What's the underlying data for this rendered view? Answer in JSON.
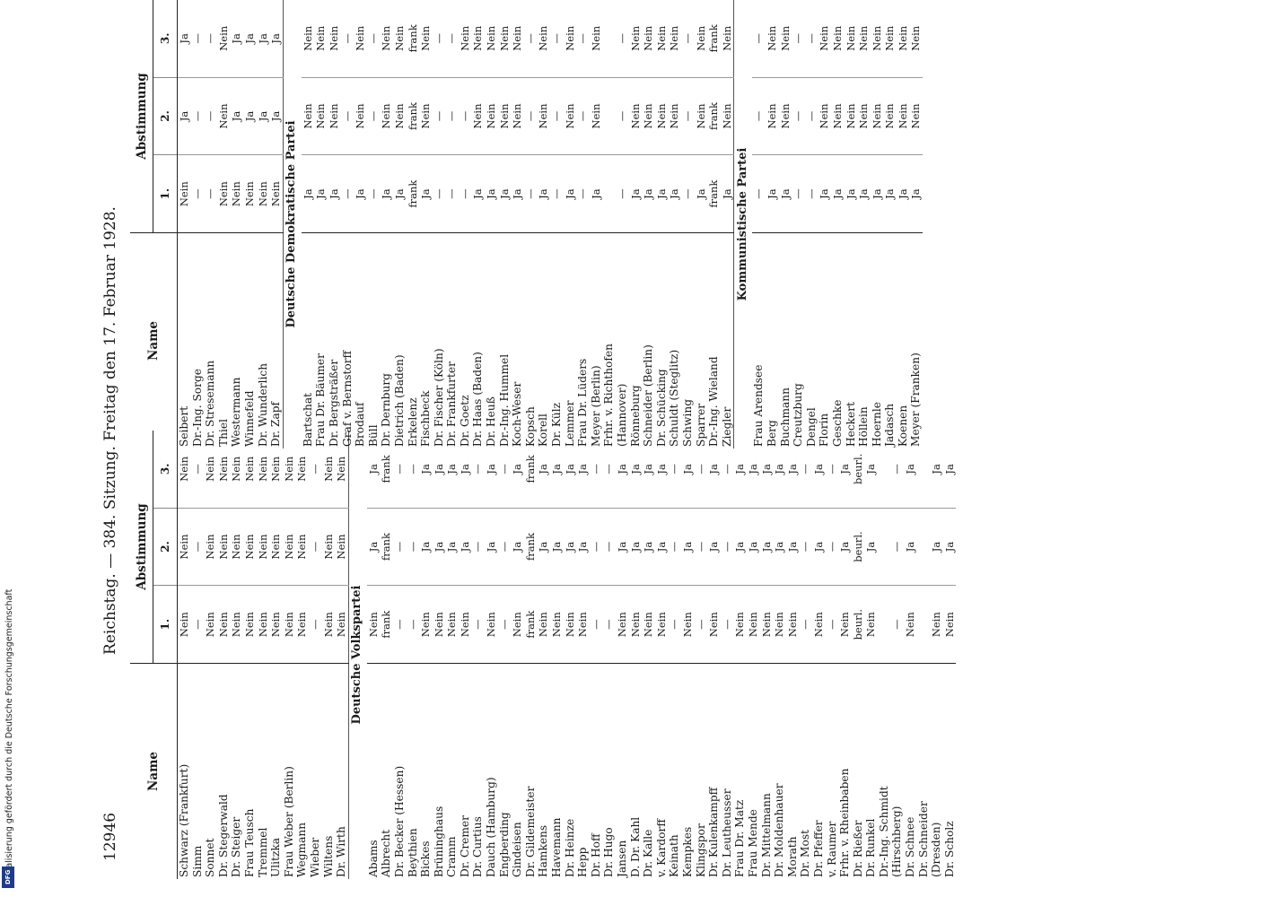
{
  "header": {
    "page_number": "12946",
    "running_title": "Reichstag. — 384. Sitzung. Freitag den 17. Februar 1928."
  },
  "table_headers": {
    "name": "Name",
    "vote_group": "Abstimmung",
    "vote_1": "1.",
    "vote_2": "2.",
    "vote_3": "3."
  },
  "left_column": {
    "rows_top": [
      {
        "name": "Schwarz (Frankfurt)",
        "v1": "Nein",
        "v2": "Nein",
        "v3": "Nein"
      },
      {
        "name": "Simm",
        "v1": "—",
        "v2": "—",
        "v3": "—"
      },
      {
        "name": "Sonnet",
        "v1": "Nein",
        "v2": "Nein",
        "v3": "Nein"
      },
      {
        "name": "Dr. Stegerwald",
        "v1": "Nein",
        "v2": "Nein",
        "v3": "Nein"
      },
      {
        "name": "Dr. Steiger",
        "v1": "Nein",
        "v2": "Nein",
        "v3": "Nein"
      },
      {
        "name": "Frau Teusch",
        "v1": "Nein",
        "v2": "Nein",
        "v3": "Nein"
      },
      {
        "name": "Tremmel",
        "v1": "Nein",
        "v2": "Nein",
        "v3": "Nein"
      },
      {
        "name": "Ulitzka",
        "v1": "Nein",
        "v2": "Nein",
        "v3": "Nein"
      },
      {
        "name": "Frau Weber (Berlin)",
        "v1": "Nein",
        "v2": "Nein",
        "v3": "Nein"
      },
      {
        "name": "Wegmann",
        "v1": "Nein",
        "v2": "Nein",
        "v3": "Nein"
      },
      {
        "name": "Wieber",
        "v1": "—",
        "v2": "—",
        "v3": "—"
      },
      {
        "name": "Wiltens",
        "v1": "Nein",
        "v2": "Nein",
        "v3": "Nein"
      },
      {
        "name": "Dr. Wirth",
        "v1": "Nein",
        "v2": "Nein",
        "v3": "Nein"
      }
    ],
    "party": "Deutsche Volkspartei",
    "rows_party": [
      {
        "name": "Abams",
        "v1": "Nein",
        "v2": "Ja",
        "v3": "Ja"
      },
      {
        "name": "Albrecht",
        "v1": "frank",
        "v2": "frank",
        "v3": "frank"
      },
      {
        "name": "Dr. Becker (Hessen)",
        "v1": "—",
        "v2": "—",
        "v3": "—"
      },
      {
        "name": "Beythien",
        "v1": "—",
        "v2": "—",
        "v3": "—"
      },
      {
        "name": "Bickes",
        "v1": "Nein",
        "v2": "Ja",
        "v3": "Ja"
      },
      {
        "name": "Brüninghaus",
        "v1": "Nein",
        "v2": "Ja",
        "v3": "Ja"
      },
      {
        "name": "Cramm",
        "v1": "Nein",
        "v2": "Ja",
        "v3": "Ja"
      },
      {
        "name": "Dr. Cremer",
        "v1": "Nein",
        "v2": "Ja",
        "v3": "Ja"
      },
      {
        "name": "Dr. Curtius",
        "v1": "—",
        "v2": "—",
        "v3": "—"
      },
      {
        "name": "Dauch (Hamburg)",
        "v1": "Nein",
        "v2": "Ja",
        "v3": "Ja"
      },
      {
        "name": "Engberding",
        "v1": "—",
        "v2": "—",
        "v3": "—"
      },
      {
        "name": "Gindeisen",
        "v1": "Nein",
        "v2": "Ja",
        "v3": "Ja"
      },
      {
        "name": "Dr. Gildemeister",
        "v1": "frank",
        "v2": "frank",
        "v3": "frank"
      },
      {
        "name": "Hamkens",
        "v1": "Nein",
        "v2": "Ja",
        "v3": "Ja"
      },
      {
        "name": "Havemann",
        "v1": "Nein",
        "v2": "Ja",
        "v3": "Ja"
      },
      {
        "name": "Dr. Heinze",
        "v1": "Nein",
        "v2": "Ja",
        "v3": "Ja"
      },
      {
        "name": "Hepp",
        "v1": "Nein",
        "v2": "Ja",
        "v3": "Ja"
      },
      {
        "name": "Dr. Hoff",
        "v1": "—",
        "v2": "—",
        "v3": "—"
      },
      {
        "name": "Dr. Hugo",
        "v1": "—",
        "v2": "—",
        "v3": "—"
      },
      {
        "name": "Jansen",
        "v1": "Nein",
        "v2": "Ja",
        "v3": "Ja"
      },
      {
        "name": "D. Dr. Kahl",
        "v1": "Nein",
        "v2": "Ja",
        "v3": "Ja"
      },
      {
        "name": "Dr. Kalle",
        "v1": "Nein",
        "v2": "Ja",
        "v3": "Ja"
      },
      {
        "name": "v. Kardorff",
        "v1": "Nein",
        "v2": "Ja",
        "v3": "Ja"
      },
      {
        "name": "Keinath",
        "v1": "—",
        "v2": "—",
        "v3": "—"
      },
      {
        "name": "Kempkes",
        "v1": "Nein",
        "v2": "Ja",
        "v3": "Ja"
      },
      {
        "name": "Klingspor",
        "v1": "—",
        "v2": "—",
        "v3": "—"
      },
      {
        "name": "Dr. Kulenkampff",
        "v1": "Nein",
        "v2": "Ja",
        "v3": "Ja"
      },
      {
        "name": "Dr. Leutheusser",
        "v1": "—",
        "v2": "—",
        "v3": "—"
      },
      {
        "name": "Frau Dr. Matz",
        "v1": "Nein",
        "v2": "Ja",
        "v3": "Ja"
      },
      {
        "name": "Frau Mende",
        "v1": "Nein",
        "v2": "Ja",
        "v3": "Ja"
      },
      {
        "name": "Dr. Mittelmann",
        "v1": "Nein",
        "v2": "Ja",
        "v3": "Ja"
      },
      {
        "name": "Dr. Moldenhauer",
        "v1": "Nein",
        "v2": "Ja",
        "v3": "Ja"
      },
      {
        "name": "Morath",
        "v1": "Nein",
        "v2": "Ja",
        "v3": "Ja"
      },
      {
        "name": "Dr. Most",
        "v1": "—",
        "v2": "—",
        "v3": "—"
      },
      {
        "name": "Dr. Pfeffer",
        "v1": "Nein",
        "v2": "Ja",
        "v3": "Ja"
      },
      {
        "name": "v. Raumer",
        "v1": "—",
        "v2": "—",
        "v3": "—"
      },
      {
        "name": "Frhr. v. Rheinbaben",
        "v1": "Nein",
        "v2": "Ja",
        "v3": "Ja"
      },
      {
        "name": "Dr. Rießer",
        "v1": "beurl.",
        "v2": "beurl.",
        "v3": "beurl."
      },
      {
        "name": "Dr. Runkel",
        "v1": "Nein",
        "v2": "Ja",
        "v3": "Ja"
      },
      {
        "name": "Dr.-Ing. Schmidt",
        "v1": "",
        "v2": "",
        "v3": ""
      },
      {
        "name": "(Hirschberg)",
        "v1": "—",
        "v2": "—",
        "v3": "—"
      },
      {
        "name": "Dr. Schnee",
        "v1": "Nein",
        "v2": "Ja",
        "v3": "Ja"
      },
      {
        "name": "Dr. Schneider",
        "v1": "",
        "v2": "",
        "v3": ""
      },
      {
        "name": "(Dresden)",
        "v1": "Nein",
        "v2": "Ja",
        "v3": "Ja"
      },
      {
        "name": "Dr. Scholz",
        "v1": "Nein",
        "v2": "Ja",
        "v3": "Ja"
      }
    ]
  },
  "right_column": {
    "rows_top": [
      {
        "name": "Seibert",
        "v1": "Nein",
        "v2": "Ja",
        "v3": "Ja"
      },
      {
        "name": "Dr.-Ing. Sorge",
        "v1": "—",
        "v2": "—",
        "v3": "—"
      },
      {
        "name": "Dr. Stresemann",
        "v1": "—",
        "v2": "—",
        "v3": "—"
      },
      {
        "name": "Thiel",
        "v1": "Nein",
        "v2": "Nein",
        "v3": "Nein"
      },
      {
        "name": "Westermann",
        "v1": "Nein",
        "v2": "Ja",
        "v3": "Ja"
      },
      {
        "name": "Winnefeld",
        "v1": "Nein",
        "v2": "Ja",
        "v3": "Ja"
      },
      {
        "name": "Dr. Wunderlich",
        "v1": "Nein",
        "v2": "Ja",
        "v3": "Ja"
      },
      {
        "name": "Dr. Zapf",
        "v1": "Nein",
        "v2": "Ja",
        "v3": "Ja"
      }
    ],
    "party1": "Deutsche Demokratische Partei",
    "rows_party1": [
      {
        "name": "Bartschat",
        "v1": "Ja",
        "v2": "Nein",
        "v3": "Nein"
      },
      {
        "name": "Frau Dr. Bäumer",
        "v1": "Ja",
        "v2": "Nein",
        "v3": "Nein"
      },
      {
        "name": "Dr. Bergsträßer",
        "v1": "Ja",
        "v2": "Nein",
        "v3": "Nein"
      },
      {
        "name": "Graf v. Bernstorff",
        "v1": "—",
        "v2": "—",
        "v3": "—"
      },
      {
        "name": "Brodauf",
        "v1": "Ja",
        "v2": "Nein",
        "v3": "Nein"
      },
      {
        "name": "Büll",
        "v1": "—",
        "v2": "—",
        "v3": "—"
      },
      {
        "name": "Dr. Dernburg",
        "v1": "Ja",
        "v2": "Nein",
        "v3": "Nein"
      },
      {
        "name": "Dietrich (Baden)",
        "v1": "Ja",
        "v2": "Nein",
        "v3": "Nein"
      },
      {
        "name": "Erkelenz",
        "v1": "frank",
        "v2": "frank",
        "v3": "frank"
      },
      {
        "name": "Fischbeck",
        "v1": "Ja",
        "v2": "Nein",
        "v3": "Nein"
      },
      {
        "name": "Dr. Fischer (Köln)",
        "v1": "—",
        "v2": "—",
        "v3": "—"
      },
      {
        "name": "Dr. Frankfurter",
        "v1": "—",
        "v2": "—",
        "v3": "—"
      },
      {
        "name": "Dr. Goetz",
        "v1": "—",
        "v2": "—",
        "v3": "Nein"
      },
      {
        "name": "Dr. Haas (Baden)",
        "v1": "Ja",
        "v2": "Nein",
        "v3": "Nein"
      },
      {
        "name": "Dr. Heuß",
        "v1": "Ja",
        "v2": "Nein",
        "v3": "Nein"
      },
      {
        "name": "Dr.-Ing. Hummel",
        "v1": "Ja",
        "v2": "Nein",
        "v3": "Nein"
      },
      {
        "name": "Koch-Weser",
        "v1": "Ja",
        "v2": "Nein",
        "v3": "Nein"
      },
      {
        "name": "Kopsch",
        "v1": "—",
        "v2": "—",
        "v3": "—"
      },
      {
        "name": "Korell",
        "v1": "Ja",
        "v2": "Nein",
        "v3": "Nein"
      },
      {
        "name": "Dr. Külz",
        "v1": "—",
        "v2": "—",
        "v3": "—"
      },
      {
        "name": "Lemmer",
        "v1": "Ja",
        "v2": "Nein",
        "v3": "Nein"
      },
      {
        "name": "Frau Dr. Lüders",
        "v1": "—",
        "v2": "—",
        "v3": "—"
      },
      {
        "name": "Meyer (Berlin)",
        "v1": "Ja",
        "v2": "Nein",
        "v3": "Nein"
      },
      {
        "name": "Frhr. v. Richthofen",
        "v1": "",
        "v2": "",
        "v3": ""
      },
      {
        "name": "(Hannover)",
        "v1": "—",
        "v2": "—",
        "v3": "—"
      },
      {
        "name": "Rönneburg",
        "v1": "Ja",
        "v2": "Nein",
        "v3": "Nein"
      },
      {
        "name": "Schneider (Berlin)",
        "v1": "Ja",
        "v2": "Nein",
        "v3": "Nein"
      },
      {
        "name": "Dr. Schücking",
        "v1": "Ja",
        "v2": "Nein",
        "v3": "Nein"
      },
      {
        "name": "Schuldt (Steglitz)",
        "v1": "Ja",
        "v2": "Nein",
        "v3": "Nein"
      },
      {
        "name": "Schwing",
        "v1": "—",
        "v2": "—",
        "v3": "—"
      },
      {
        "name": "Sparrer",
        "v1": "Ja",
        "v2": "Nein",
        "v3": "Nein"
      },
      {
        "name": "Dr.-Ing. Wieland",
        "v1": "frank",
        "v2": "frank",
        "v3": "frank"
      },
      {
        "name": "Ziegler",
        "v1": "Ja",
        "v2": "Nein",
        "v3": "Nein"
      }
    ],
    "party2": "Kommunistische Partei",
    "rows_party2": [
      {
        "name": "Frau Arendsee",
        "v1": "—",
        "v2": "—",
        "v3": "—"
      },
      {
        "name": "Berg",
        "v1": "Ja",
        "v2": "Nein",
        "v3": "Nein"
      },
      {
        "name": "Buchmann",
        "v1": "Ja",
        "v2": "Nein",
        "v3": "Nein"
      },
      {
        "name": "Creutzburg",
        "v1": "—",
        "v2": "—",
        "v3": "—"
      },
      {
        "name": "Dengel",
        "v1": "—",
        "v2": "—",
        "v3": "—"
      },
      {
        "name": "Florin",
        "v1": "Ja",
        "v2": "Nein",
        "v3": "Nein"
      },
      {
        "name": "Geschke",
        "v1": "Ja",
        "v2": "Nein",
        "v3": "Nein"
      },
      {
        "name": "Heckert",
        "v1": "Ja",
        "v2": "Nein",
        "v3": "Nein"
      },
      {
        "name": "Höllein",
        "v1": "Ja",
        "v2": "Nein",
        "v3": "Nein"
      },
      {
        "name": "Hoernle",
        "v1": "Ja",
        "v2": "Nein",
        "v3": "Nein"
      },
      {
        "name": "Jadasch",
        "v1": "Ja",
        "v2": "Nein",
        "v3": "Nein"
      },
      {
        "name": "Koenen",
        "v1": "Ja",
        "v2": "Nein",
        "v3": "Nein"
      },
      {
        "name": "Meyer (Franken)",
        "v1": "Ja",
        "v2": "Nein",
        "v3": "Nein"
      }
    ]
  },
  "side_credit": "Digitalisierung gefördert durch die Deutsche Forschungsgemeinschaft",
  "badge": "DFG"
}
